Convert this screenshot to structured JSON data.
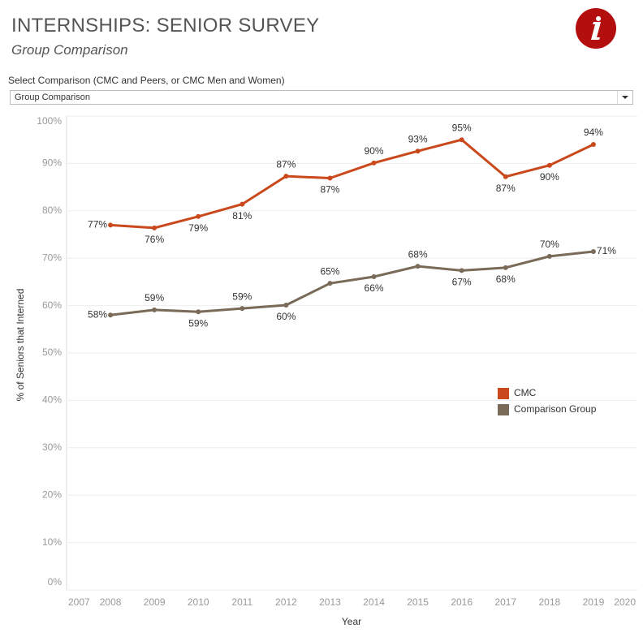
{
  "filter": {
    "label": "Select Comparison (CMC and Peers, or CMC Men and Women)",
    "value": "Group Comparison"
  },
  "chart_data": {
    "type": "line",
    "title": "INTERNSHIPS: SENIOR SURVEY",
    "subtitle": "Group Comparison",
    "x_label": "Year",
    "y_label": "% of Seniors that Interned",
    "x": [
      2008,
      2009,
      2010,
      2011,
      2012,
      2013,
      2014,
      2015,
      2016,
      2017,
      2018,
      2019
    ],
    "series": [
      {
        "name": "CMC",
        "color": "#c9491c",
        "values": [
          77.0,
          76.4,
          78.8,
          81.4,
          87.3,
          86.9,
          90.1,
          92.6,
          95.0,
          87.2,
          89.6,
          94.0
        ],
        "value_labels": [
          "77%",
          "76%",
          "79%",
          "81%",
          "87%",
          "87%",
          "90%",
          "93%",
          "95%",
          "87%",
          "90%",
          "94%"
        ]
      },
      {
        "name": "Comparison Group",
        "color": "#7a6a58",
        "values": [
          58.0,
          59.1,
          58.7,
          59.4,
          60.1,
          64.7,
          66.1,
          68.3,
          67.4,
          68.0,
          70.4,
          71.4
        ],
        "value_labels": [
          "58%",
          "59%",
          "59%",
          "59%",
          "60%",
          "65%",
          "66%",
          "68%",
          "67%",
          "68%",
          "70%",
          "71%"
        ]
      }
    ],
    "xlim": [
      2007,
      2020
    ],
    "xticks": [
      2007,
      2008,
      2009,
      2010,
      2011,
      2012,
      2013,
      2014,
      2015,
      2016,
      2017,
      2018,
      2019,
      2020
    ],
    "ylim": [
      0,
      100
    ],
    "yticks": [
      {
        "value": 0,
        "label": "0%"
      },
      {
        "value": 10,
        "label": "10%"
      },
      {
        "value": 20,
        "label": "20%"
      },
      {
        "value": 30,
        "label": "30%"
      },
      {
        "value": 40,
        "label": "40%"
      },
      {
        "value": 50,
        "label": "50%"
      },
      {
        "value": 60,
        "label": "60%"
      },
      {
        "value": 70,
        "label": "70%"
      },
      {
        "value": 80,
        "label": "80%"
      },
      {
        "value": 90,
        "label": "90%"
      },
      {
        "value": 100,
        "label": "100%"
      }
    ],
    "grid": true
  }
}
